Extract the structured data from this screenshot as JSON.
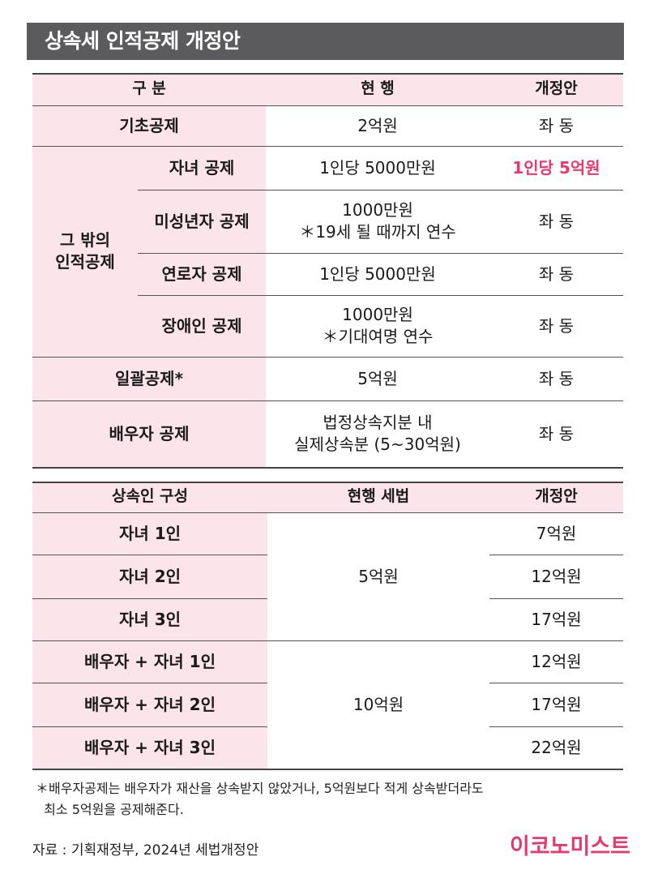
{
  "title": "상속세 인적공제 개정안",
  "table1": {
    "headers": [
      "구 분",
      "현 행",
      "개정안"
    ],
    "rows": [
      {
        "label": "기초공제",
        "current": "2억원",
        "revised": "좌 동"
      },
      {
        "group": "그 밖의\n인적공제",
        "label": "자녀 공제",
        "current": "1인당 5000만원",
        "revised": "1인당 5억원"
      },
      {
        "label": "미성년자 공제",
        "current": "1000만원\n＊19세 될 때까지 연수",
        "revised": "좌 동"
      },
      {
        "label": "연로자 공제",
        "current": "1인당 5000만원",
        "revised": "좌 동"
      },
      {
        "label": "장애인 공제",
        "current": "1000만원\n＊기대여명 연수",
        "revised": "좌 동"
      },
      {
        "label": "일괄공제*",
        "current": "5억원",
        "revised": "좌 동"
      },
      {
        "label": "배우자 공제",
        "current": "법정상속지분 내\n실제상속분 (5~30억원)",
        "revised": "좌 동"
      }
    ]
  },
  "table2": {
    "headers": [
      "상속인 구성",
      "현행 세법",
      "개정안"
    ],
    "rows": [
      {
        "label": "자녀 1인",
        "revised": "7억원"
      },
      {
        "label": "자녀 2인",
        "revised": "12억원"
      },
      {
        "label": "자녀 3인",
        "revised": "17억원"
      },
      {
        "label": "배우자 + 자녀 1인",
        "revised": "12억원"
      },
      {
        "label": "배우자 + 자녀 2인",
        "revised": "17억원"
      },
      {
        "label": "배우자 + 자녀 3인",
        "revised": "22억원"
      }
    ],
    "current_group1": "5억원",
    "current_group2": "10억원"
  },
  "footnote": "＊배우자공제는 배우자가 재산을 상속받지 않았거나, 5억원보다 적게 상속받더라도\n  최소 5억원을 공제해준다.",
  "source": "자료 : 기획재정부, 2024년 세법개정안",
  "logo": "이코노미스트",
  "colors": {
    "accent": "#e8386c",
    "pink_bg": "#fbe4ea",
    "title_bg": "#5b5b5d"
  }
}
